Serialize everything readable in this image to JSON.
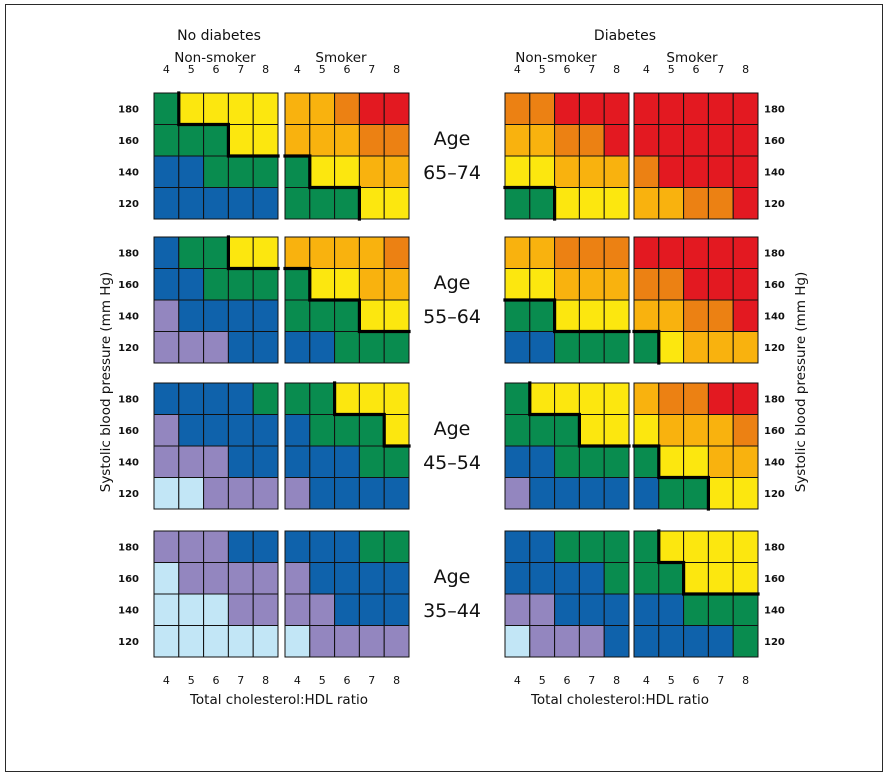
{
  "chart_data": {
    "type": "heatmap",
    "diabetes_groups": [
      "No diabetes",
      "Diabetes"
    ],
    "smoking_groups": [
      "Non-smoker",
      "Smoker"
    ],
    "x_ticks": [
      "4",
      "5",
      "6",
      "7",
      "8"
    ],
    "y_ticks": [
      "180",
      "160",
      "140",
      "120"
    ],
    "xlabel": "Total cholesterol:HDL ratio",
    "ylabel": "Systolic blood pressure (mm Hg)",
    "age_groups": [
      {
        "label": "Age",
        "range": "65–74"
      },
      {
        "label": "Age",
        "range": "55–64"
      },
      {
        "label": "Age",
        "range": "45–54"
      },
      {
        "label": "Age",
        "range": "35–44"
      }
    ],
    "risk_levels": [
      {
        "code": 0,
        "color": "#c2e6f6"
      },
      {
        "code": 1,
        "color": "#9386bf"
      },
      {
        "code": 2,
        "color": "#0f62ab"
      },
      {
        "code": 3,
        "color": "#098c4f"
      },
      {
        "code": 4,
        "color": "#fce70f"
      },
      {
        "code": 5,
        "color": "#f9b20e"
      },
      {
        "code": 6,
        "color": "#ec8113"
      },
      {
        "code": 7,
        "color": "#e31921"
      }
    ],
    "grid_color": "#111111",
    "threshold_line_color": "#000000",
    "threshold_rule": "thick line separates cells with risk code below 4 from cells with code 4 or higher",
    "panels": [
      [
        [
          [
            3,
            4,
            4,
            4,
            4
          ],
          [
            3,
            3,
            3,
            4,
            4
          ],
          [
            2,
            2,
            3,
            3,
            3
          ],
          [
            2,
            2,
            2,
            2,
            2
          ]
        ],
        [
          [
            5,
            5,
            6,
            7,
            7
          ],
          [
            5,
            5,
            5,
            6,
            6
          ],
          [
            3,
            4,
            4,
            5,
            5
          ],
          [
            3,
            3,
            3,
            4,
            4
          ]
        ],
        [
          [
            6,
            6,
            7,
            7,
            7
          ],
          [
            5,
            5,
            6,
            6,
            7
          ],
          [
            4,
            4,
            5,
            5,
            5
          ],
          [
            3,
            3,
            4,
            4,
            4
          ]
        ],
        [
          [
            7,
            7,
            7,
            7,
            7
          ],
          [
            7,
            7,
            7,
            7,
            7
          ],
          [
            6,
            7,
            7,
            7,
            7
          ],
          [
            5,
            5,
            6,
            6,
            7
          ]
        ]
      ],
      [
        [
          [
            2,
            3,
            3,
            4,
            4
          ],
          [
            2,
            2,
            3,
            3,
            3
          ],
          [
            1,
            2,
            2,
            2,
            2
          ],
          [
            1,
            1,
            1,
            2,
            2
          ]
        ],
        [
          [
            5,
            5,
            5,
            5,
            6
          ],
          [
            3,
            4,
            4,
            5,
            5
          ],
          [
            3,
            3,
            3,
            4,
            4
          ],
          [
            2,
            2,
            3,
            3,
            3
          ]
        ],
        [
          [
            5,
            5,
            6,
            6,
            6
          ],
          [
            4,
            4,
            5,
            5,
            5
          ],
          [
            3,
            3,
            4,
            4,
            4
          ],
          [
            2,
            2,
            3,
            3,
            3
          ]
        ],
        [
          [
            7,
            7,
            7,
            7,
            7
          ],
          [
            6,
            6,
            7,
            7,
            7
          ],
          [
            5,
            5,
            6,
            6,
            7
          ],
          [
            3,
            4,
            5,
            5,
            5
          ]
        ]
      ],
      [
        [
          [
            2,
            2,
            2,
            2,
            3
          ],
          [
            1,
            2,
            2,
            2,
            2
          ],
          [
            1,
            1,
            1,
            2,
            2
          ],
          [
            0,
            0,
            1,
            1,
            1
          ]
        ],
        [
          [
            3,
            3,
            4,
            4,
            4
          ],
          [
            2,
            3,
            3,
            3,
            4
          ],
          [
            2,
            2,
            2,
            3,
            3
          ],
          [
            1,
            2,
            2,
            2,
            2
          ]
        ],
        [
          [
            3,
            4,
            4,
            4,
            4
          ],
          [
            3,
            3,
            3,
            4,
            4
          ],
          [
            2,
            2,
            3,
            3,
            3
          ],
          [
            1,
            2,
            2,
            2,
            2
          ]
        ],
        [
          [
            5,
            6,
            6,
            7,
            7
          ],
          [
            4,
            5,
            5,
            5,
            6
          ],
          [
            3,
            4,
            4,
            5,
            5
          ],
          [
            2,
            3,
            3,
            4,
            4
          ]
        ]
      ],
      [
        [
          [
            1,
            1,
            1,
            2,
            2
          ],
          [
            0,
            1,
            1,
            1,
            1
          ],
          [
            0,
            0,
            0,
            1,
            1
          ],
          [
            0,
            0,
            0,
            0,
            0
          ]
        ],
        [
          [
            2,
            2,
            2,
            3,
            3
          ],
          [
            1,
            2,
            2,
            2,
            2
          ],
          [
            1,
            1,
            2,
            2,
            2
          ],
          [
            0,
            1,
            1,
            1,
            1
          ]
        ],
        [
          [
            2,
            2,
            3,
            3,
            3
          ],
          [
            2,
            2,
            2,
            2,
            3
          ],
          [
            1,
            1,
            2,
            2,
            2
          ],
          [
            0,
            1,
            1,
            1,
            2
          ]
        ],
        [
          [
            3,
            4,
            4,
            4,
            4
          ],
          [
            3,
            3,
            4,
            4,
            4
          ],
          [
            2,
            2,
            3,
            3,
            3
          ],
          [
            2,
            2,
            2,
            2,
            3
          ]
        ]
      ]
    ]
  }
}
